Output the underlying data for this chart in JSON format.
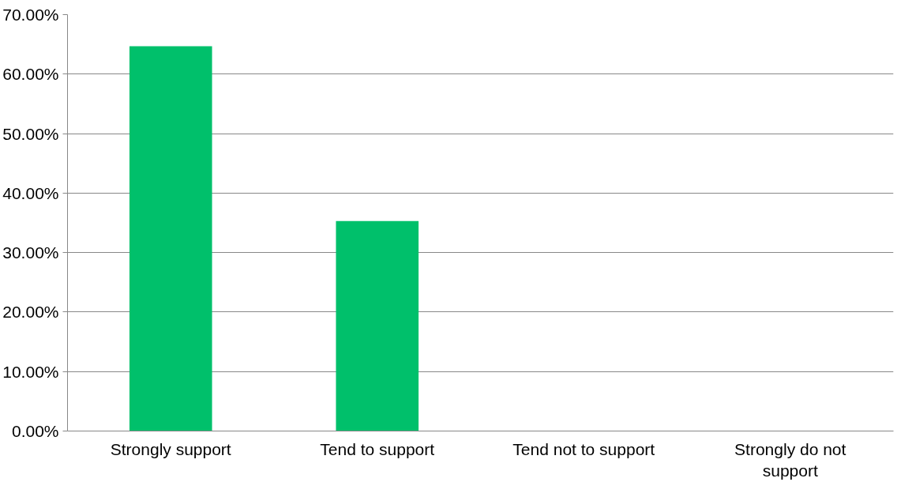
{
  "chart_data": {
    "type": "bar",
    "categories": [
      "Strongly support",
      "Tend to support",
      "Tend not to support",
      "Strongly do not support"
    ],
    "values": [
      64.7,
      35.3,
      0,
      0
    ],
    "color": "#00c06b",
    "ylim": [
      0,
      70
    ],
    "yticks": [
      {
        "value": 0,
        "label": "0.00%"
      },
      {
        "value": 10,
        "label": "10.00%"
      },
      {
        "value": 20,
        "label": "20.00%"
      },
      {
        "value": 30,
        "label": "30.00%"
      },
      {
        "value": 40,
        "label": "40.00%"
      },
      {
        "value": 50,
        "label": "50.00%"
      },
      {
        "value": 60,
        "label": "60.00%"
      },
      {
        "value": 70,
        "label": "70.00%"
      }
    ],
    "grid": "y"
  }
}
